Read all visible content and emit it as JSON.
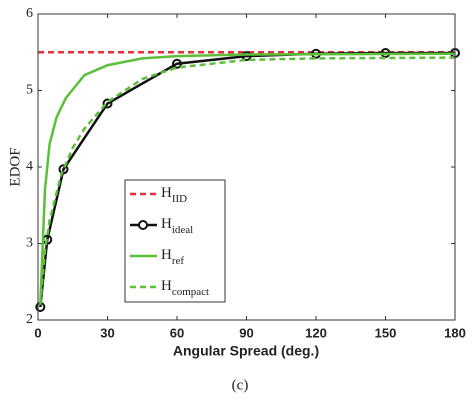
{
  "chart_data": {
    "type": "line",
    "ylabel": "EDOF",
    "xlabel": "Angular Spread (deg.)",
    "caption": "(c)",
    "xlim": [
      0,
      180
    ],
    "xticks": [
      0,
      30,
      60,
      90,
      120,
      150,
      180
    ],
    "ylim": [
      2,
      6
    ],
    "yticks": [
      2,
      3,
      4,
      5,
      6
    ],
    "series": [
      {
        "name": "H",
        "subscript": "IID",
        "color": "#e0303a",
        "dash": true,
        "markers": false,
        "x": [
          0,
          180
        ],
        "values": [
          5.5,
          5.5
        ]
      },
      {
        "name": "H",
        "subscript": "ideal",
        "color": "#111111",
        "dash": false,
        "markers": true,
        "x": [
          1,
          4,
          11,
          30,
          60,
          90,
          120,
          150,
          180
        ],
        "values": [
          2.17,
          3.05,
          3.97,
          4.83,
          5.35,
          5.45,
          5.48,
          5.49,
          5.49
        ]
      },
      {
        "name": "H",
        "subscript": "ref",
        "color": "#5cbf3a",
        "dash": false,
        "markers": false,
        "x": [
          1,
          3,
          5,
          8,
          12,
          20,
          30,
          45,
          60,
          90,
          180
        ],
        "values": [
          2.2,
          3.7,
          4.3,
          4.65,
          4.9,
          5.2,
          5.33,
          5.42,
          5.45,
          5.47,
          5.48
        ]
      },
      {
        "name": "H",
        "subscript": "compact",
        "color": "#5cbf3a",
        "dash": true,
        "markers": false,
        "x": [
          1,
          3,
          5,
          10,
          15,
          20,
          30,
          45,
          60,
          90,
          120,
          180
        ],
        "values": [
          2.2,
          2.9,
          3.3,
          3.9,
          4.25,
          4.5,
          4.85,
          5.15,
          5.3,
          5.4,
          5.42,
          5.43
        ]
      }
    ]
  }
}
